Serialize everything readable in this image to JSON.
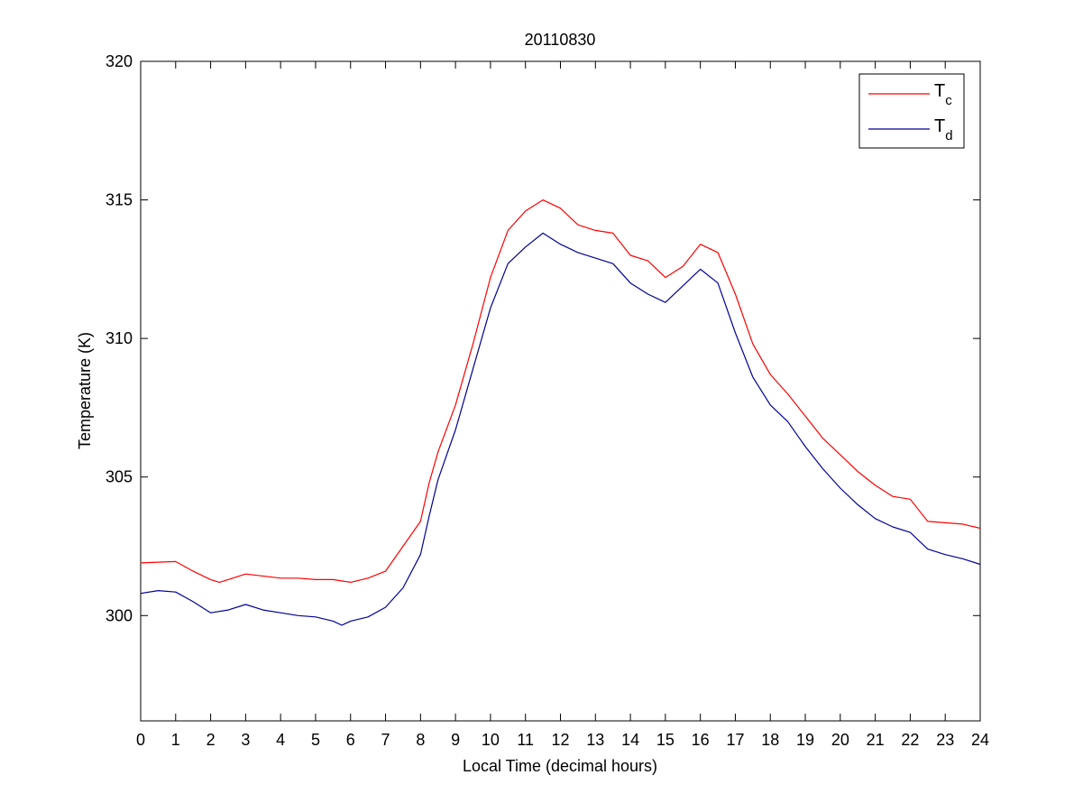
{
  "chart_data": {
    "type": "line",
    "title": "20110830",
    "xlabel": "Local Time (decimal hours)",
    "ylabel": "Temperature (K)",
    "xlim": [
      0,
      24
    ],
    "ylim": [
      296.2,
      320
    ],
    "xticks": [
      0,
      1,
      2,
      3,
      4,
      5,
      6,
      7,
      8,
      9,
      10,
      11,
      12,
      13,
      14,
      15,
      16,
      17,
      18,
      19,
      20,
      21,
      22,
      23,
      24
    ],
    "yticks": [
      300,
      305,
      310,
      315,
      320
    ],
    "grid": false,
    "legend_position": "top-right",
    "series": [
      {
        "name": "T",
        "subscript": "c",
        "color": "#ff0000",
        "x": [
          0,
          1,
          1.5,
          2,
          2.25,
          2.5,
          3,
          4,
          4.5,
          5,
          5.5,
          6,
          6.5,
          7,
          7.5,
          8,
          8.25,
          8.5,
          9,
          9.5,
          10,
          10.5,
          11,
          11.5,
          12,
          12.5,
          13,
          13.5,
          14,
          14.5,
          15,
          15.5,
          16,
          16.5,
          17,
          17.5,
          18,
          18.5,
          19,
          19.5,
          20,
          20.5,
          21,
          21.5,
          22,
          22.5,
          23,
          23.5,
          24
        ],
        "y": [
          301.9,
          301.95,
          301.6,
          301.3,
          301.2,
          301.3,
          301.5,
          301.35,
          301.35,
          301.3,
          301.3,
          301.2,
          301.35,
          301.6,
          302.5,
          303.4,
          304.8,
          305.9,
          307.6,
          309.8,
          312.2,
          313.9,
          314.6,
          315.0,
          314.7,
          314.1,
          313.9,
          313.8,
          313.0,
          312.8,
          312.2,
          312.6,
          313.4,
          313.1,
          311.6,
          309.8,
          308.7,
          308.0,
          307.2,
          306.4,
          305.8,
          305.2,
          304.7,
          304.3,
          304.2,
          303.4,
          303.35,
          303.3,
          303.15
        ]
      },
      {
        "name": "T",
        "subscript": "d",
        "color": "#000099",
        "x": [
          0,
          0.5,
          1,
          1.5,
          2,
          2.5,
          3,
          3.5,
          4,
          4.5,
          5,
          5.5,
          5.75,
          6,
          6.5,
          7,
          7.5,
          8,
          8.25,
          8.5,
          9,
          9.5,
          10,
          10.5,
          11,
          11.5,
          12,
          12.5,
          13,
          13.5,
          14,
          14.5,
          15,
          15.5,
          16,
          16.5,
          17,
          17.5,
          18,
          18.5,
          19,
          19.5,
          20,
          20.5,
          21,
          21.5,
          22,
          22.5,
          23,
          23.5,
          24
        ],
        "y": [
          300.8,
          300.9,
          300.85,
          300.5,
          300.1,
          300.2,
          300.4,
          300.2,
          300.1,
          300.0,
          299.95,
          299.8,
          299.65,
          299.8,
          299.95,
          300.3,
          301.0,
          302.2,
          303.6,
          304.9,
          306.7,
          308.9,
          311.1,
          312.7,
          313.3,
          313.8,
          313.4,
          313.1,
          312.9,
          312.7,
          312.0,
          311.6,
          311.3,
          311.9,
          312.5,
          312.0,
          310.2,
          308.6,
          307.6,
          307.0,
          306.1,
          305.3,
          304.6,
          304.0,
          303.5,
          303.2,
          303.0,
          302.4,
          302.2,
          302.05,
          301.85
        ]
      }
    ]
  }
}
